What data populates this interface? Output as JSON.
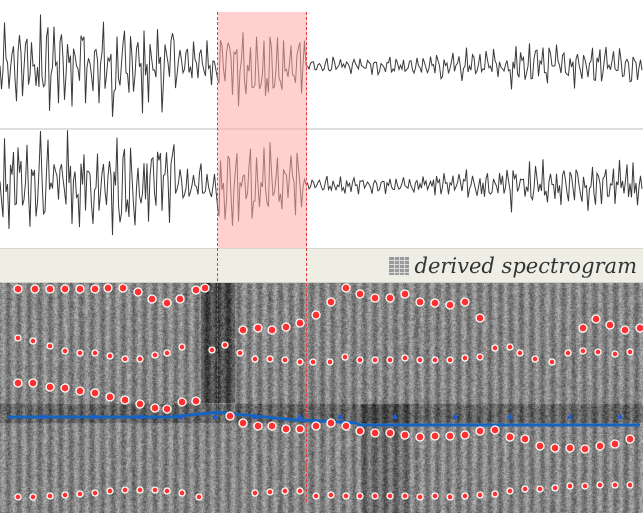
{
  "spectrogram_panel": {
    "label": "derived spectrogram",
    "icon": "grid-icon"
  },
  "colors": {
    "waveform": "#3a3a3a",
    "selection_fill": "#ffb4b4",
    "selection_edge": "#e53a3a",
    "pitch_track": "#1565c0",
    "formant_point": "#ff3030",
    "header_bg": "#eeeee4"
  }
}
